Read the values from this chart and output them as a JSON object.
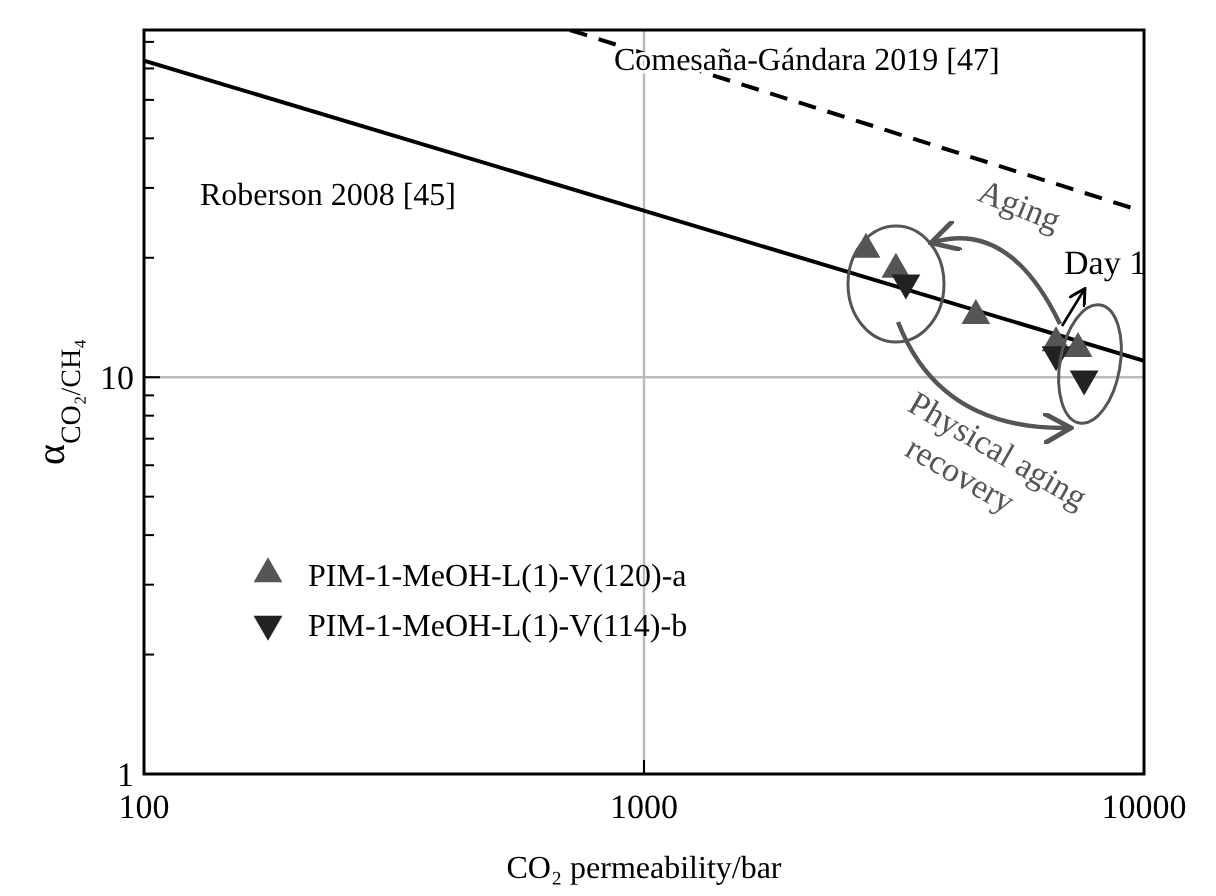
{
  "chart_data": {
    "type": "scatter",
    "xlabel": "CO₂ permeability/bar",
    "ylabel": "α$_{CO₂/CH₄}$",
    "log": "xy",
    "xlim": [
      100,
      10000
    ],
    "ylim": [
      1,
      75
    ],
    "xticks": [
      100,
      1000,
      10000
    ],
    "yticks": [
      1,
      {
        "value": 2,
        "label": null
      },
      {
        "value": 3,
        "label": null
      },
      {
        "value": 4,
        "label": null
      },
      {
        "value": 5,
        "label": null
      },
      {
        "value": 6,
        "label": null
      },
      {
        "value": 7,
        "label": null
      },
      {
        "value": 8,
        "label": null
      },
      {
        "value": 9,
        "label": null
      },
      10,
      {
        "value": 20,
        "label": null
      },
      {
        "value": 30,
        "label": null
      },
      {
        "value": 40,
        "label": null
      },
      {
        "value": 50,
        "label": null
      },
      {
        "value": 60,
        "label": null
      },
      {
        "value": 70,
        "label": null
      }
    ],
    "grid": true,
    "legend": "bottom left",
    "series": [
      {
        "name": "Roberson 2008 [45]",
        "type": "line",
        "color": "#000000",
        "line_style": "solid",
        "x": [
          100,
          10000
        ],
        "values": [
          62.8,
          11
        ]
      },
      {
        "name": "Comesaña-Gándara 2019 [47]",
        "type": "line",
        "color": "#000000",
        "line_style": "dashed",
        "x": [
          711,
          9550
        ],
        "values": [
          75,
          26.6
        ]
      },
      {
        "name": "PIM-1-MeOH-L(1)-V(120)-a",
        "color": "#555555",
        "marker": "triangle",
        "x": [
          2780,
          3190,
          4610,
          6670,
          7380
        ],
        "values": [
          21,
          18.7,
          14.3,
          12.2,
          11.8
        ]
      },
      {
        "name": "PIM-1-MeOH-L(1)-V(114)-b",
        "color": "#222222",
        "marker": "triangle-down",
        "x": [
          3340,
          6670,
          7590
        ],
        "values": [
          17.3,
          11.4,
          9.9
        ]
      }
    ],
    "annotations": [
      "Aging",
      "Day 1",
      "Physical aging recovery"
    ]
  }
}
